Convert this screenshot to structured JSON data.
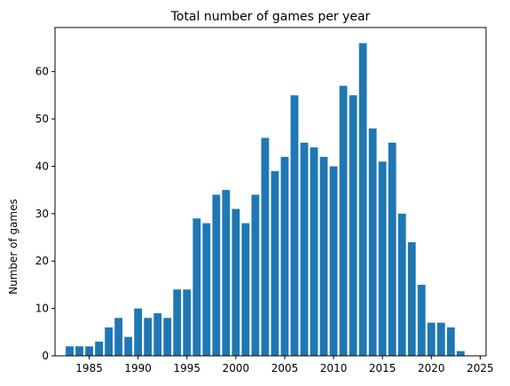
{
  "chart_data": {
    "type": "bar",
    "title": "Total number of games per year",
    "xlabel": "",
    "ylabel": "Number of games",
    "x": [
      1983,
      1984,
      1985,
      1986,
      1987,
      1988,
      1989,
      1990,
      1991,
      1992,
      1993,
      1994,
      1995,
      1996,
      1997,
      1998,
      1999,
      2000,
      2001,
      2002,
      2003,
      2004,
      2005,
      2006,
      2007,
      2008,
      2009,
      2010,
      2011,
      2012,
      2013,
      2014,
      2015,
      2016,
      2017,
      2018,
      2019,
      2020,
      2021,
      2022,
      2023
    ],
    "values": [
      2,
      2,
      2,
      3,
      6,
      8,
      4,
      10,
      8,
      9,
      8,
      14,
      14,
      29,
      28,
      34,
      35,
      31,
      28,
      34,
      46,
      39,
      42,
      55,
      45,
      44,
      42,
      40,
      57,
      55,
      66,
      48,
      41,
      45,
      30,
      24,
      15,
      7,
      7,
      6,
      1
    ],
    "xlim": [
      1981.5,
      2025.6
    ],
    "ylim": [
      0,
      69.3
    ],
    "xticks": [
      1985,
      1990,
      1995,
      2000,
      2005,
      2010,
      2015,
      2020,
      2025
    ],
    "yticks": [
      0,
      10,
      20,
      30,
      40,
      50,
      60
    ],
    "bar_color": "#1f77b4",
    "grid": false,
    "legend": "none"
  }
}
